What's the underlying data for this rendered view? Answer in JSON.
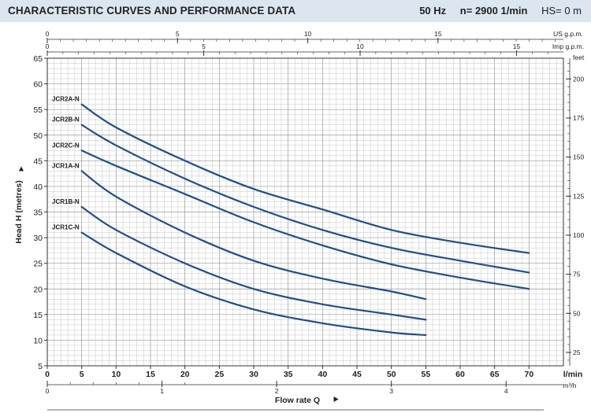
{
  "header": {
    "title": "CHARACTERISTIC CURVES AND PERFORMANCE DATA",
    "freq": "50 Hz",
    "speed": "n= 2900 1/min",
    "hs": "HS= 0 m"
  },
  "chart_data": {
    "type": "line",
    "title": "",
    "xlabel": "Flow rate Q",
    "ylabel": "Head H (metres)",
    "x_unit": "l/min",
    "xlim": [
      0,
      75
    ],
    "ylim": [
      5,
      65
    ],
    "x_ticks": [
      0,
      5,
      10,
      15,
      20,
      25,
      30,
      35,
      40,
      45,
      50,
      55,
      60,
      65,
      70
    ],
    "y_ticks": [
      5,
      10,
      15,
      20,
      25,
      30,
      35,
      40,
      45,
      50,
      55,
      60,
      65
    ],
    "grid": true,
    "secondary_axes": {
      "us_gpm": {
        "unit": "US g.p.m.",
        "ticks": [
          0,
          5,
          10,
          15
        ]
      },
      "imp_gpm": {
        "unit": "Imp g.p.m.",
        "ticks": [
          0,
          5,
          10,
          15
        ]
      },
      "m3h": {
        "unit": "m³/h",
        "ticks": [
          0,
          1,
          2,
          3,
          4
        ]
      },
      "feet": {
        "unit": "feet",
        "ticks": [
          25,
          50,
          75,
          100,
          125,
          150,
          175,
          200
        ]
      }
    },
    "series": [
      {
        "name": "JCR2A-N",
        "x": [
          5,
          10,
          20,
          30,
          40,
          50,
          60,
          70
        ],
        "y": [
          56,
          51.5,
          45,
          39.5,
          35.5,
          31.5,
          29,
          27
        ]
      },
      {
        "name": "JCR2B-N",
        "x": [
          5,
          10,
          20,
          30,
          40,
          50,
          60,
          70
        ],
        "y": [
          52,
          48,
          41.5,
          36,
          31.5,
          28,
          25.5,
          23.2
        ]
      },
      {
        "name": "JCR2C-N",
        "x": [
          5,
          10,
          20,
          30,
          40,
          50,
          60,
          70
        ],
        "y": [
          47,
          44,
          38.5,
          33,
          28.5,
          24.8,
          22.2,
          20
        ]
      },
      {
        "name": "JCR1A-N",
        "x": [
          5,
          10,
          20,
          30,
          40,
          50,
          55
        ],
        "y": [
          43,
          38,
          31,
          25.5,
          22,
          19.5,
          18
        ]
      },
      {
        "name": "JCR1B-N",
        "x": [
          5,
          10,
          20,
          30,
          40,
          50,
          55
        ],
        "y": [
          36,
          31.5,
          25,
          20,
          17,
          15,
          14
        ]
      },
      {
        "name": "JCR1C-N",
        "x": [
          5,
          10,
          20,
          30,
          40,
          50,
          55
        ],
        "y": [
          31,
          27,
          20.5,
          16,
          13.3,
          11.5,
          11
        ]
      }
    ]
  },
  "colors": {
    "curve": "#1f4e8c",
    "grid": "#b8b8b8",
    "header_bg": "#dce6f0"
  }
}
